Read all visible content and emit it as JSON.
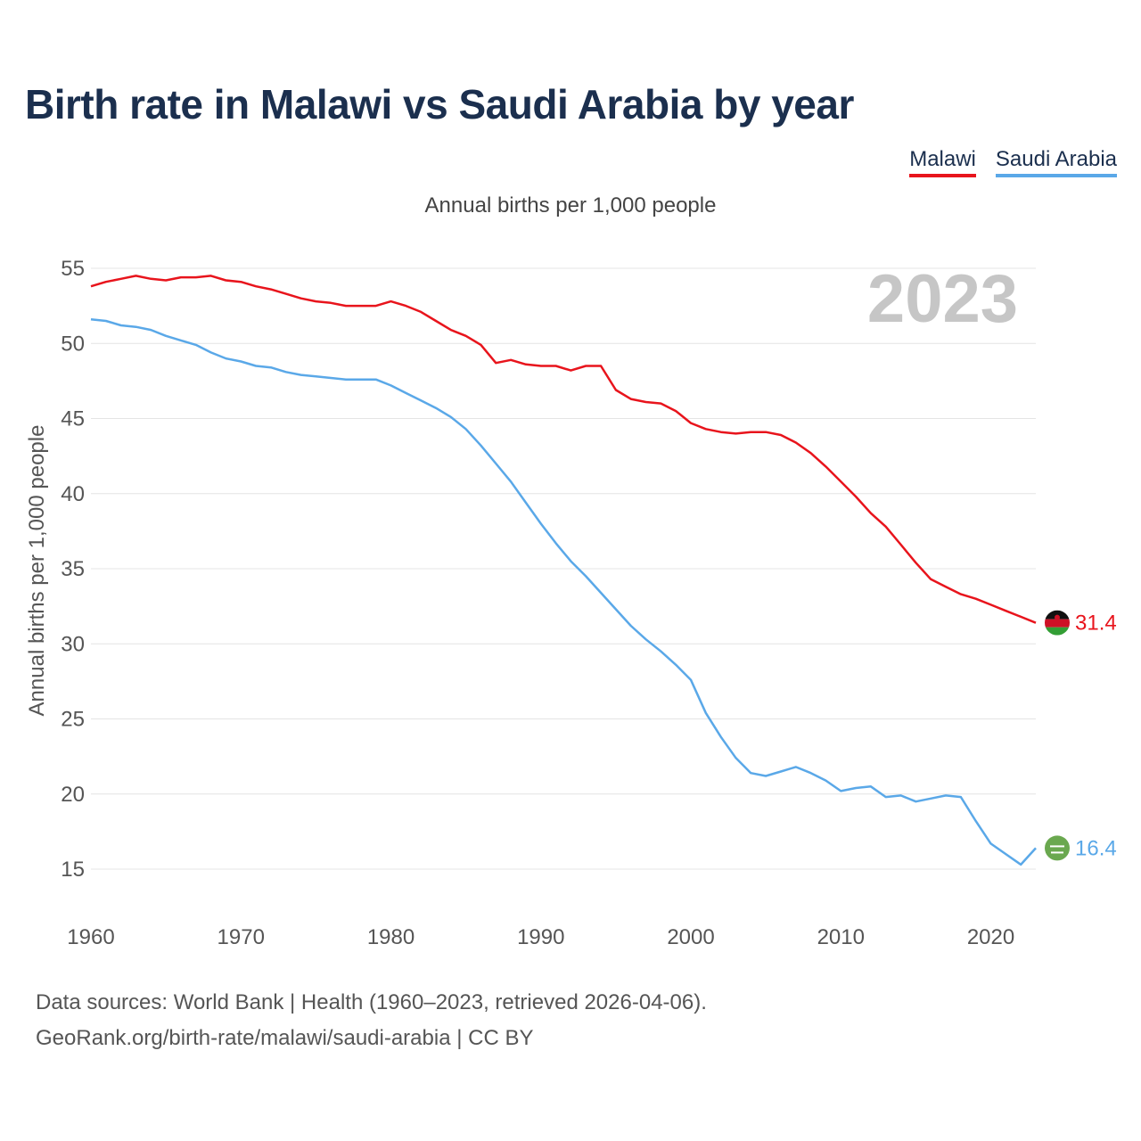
{
  "title": "Birth rate in Malawi vs Saudi Arabia by year",
  "subtitle": "Annual births per 1,000 people",
  "year_watermark": "2023",
  "footer": {
    "line1": "Data sources: World Bank | Health (1960–2023, retrieved 2026-04-06).",
    "line2": "GeoRank.org/birth-rate/malawi/saudi-arabia | CC BY"
  },
  "legend": [
    {
      "name": "Malawi",
      "color": "#e8141c"
    },
    {
      "name": "Saudi Arabia",
      "color": "#5aa8e8"
    }
  ],
  "chart_data": {
    "type": "line",
    "title": "Birth rate in Malawi vs Saudi Arabia by year",
    "xlabel": "",
    "ylabel": "Annual births per 1,000 people",
    "xlim": [
      1960,
      2023
    ],
    "ylim": [
      15,
      55
    ],
    "xticks": [
      1960,
      1970,
      1980,
      1990,
      2000,
      2010,
      2020
    ],
    "yticks": [
      15,
      20,
      25,
      30,
      35,
      40,
      45,
      50,
      55
    ],
    "grid": true,
    "legend_position": "top-right",
    "x": [
      1960,
      1961,
      1962,
      1963,
      1964,
      1965,
      1966,
      1967,
      1968,
      1969,
      1970,
      1971,
      1972,
      1973,
      1974,
      1975,
      1976,
      1977,
      1978,
      1979,
      1980,
      1981,
      1982,
      1983,
      1984,
      1985,
      1986,
      1987,
      1988,
      1989,
      1990,
      1991,
      1992,
      1993,
      1994,
      1995,
      1996,
      1997,
      1998,
      1999,
      2000,
      2001,
      2002,
      2003,
      2004,
      2005,
      2006,
      2007,
      2008,
      2009,
      2010,
      2011,
      2012,
      2013,
      2014,
      2015,
      2016,
      2017,
      2018,
      2019,
      2020,
      2021,
      2022,
      2023
    ],
    "series": [
      {
        "name": "Malawi",
        "color": "#e8141c",
        "end_label": "31.4",
        "values": [
          53.8,
          54.1,
          54.3,
          54.5,
          54.3,
          54.2,
          54.4,
          54.4,
          54.5,
          54.2,
          54.1,
          53.8,
          53.6,
          53.3,
          53.0,
          52.8,
          52.7,
          52.5,
          52.5,
          52.5,
          52.8,
          52.5,
          52.1,
          51.5,
          50.9,
          50.5,
          49.9,
          48.7,
          48.9,
          48.6,
          48.5,
          48.5,
          48.2,
          48.5,
          48.5,
          46.9,
          46.3,
          46.1,
          46.0,
          45.5,
          44.7,
          44.3,
          44.1,
          44.0,
          44.1,
          44.1,
          43.9,
          43.4,
          42.7,
          41.8,
          40.8,
          39.8,
          38.7,
          37.8,
          36.6,
          35.4,
          34.3,
          33.8,
          33.3,
          33.0,
          32.6,
          32.2,
          31.8,
          31.4
        ]
      },
      {
        "name": "Saudi Arabia",
        "color": "#5aa8e8",
        "end_label": "16.4",
        "values": [
          51.6,
          51.5,
          51.2,
          51.1,
          50.9,
          50.5,
          50.2,
          49.9,
          49.4,
          49.0,
          48.8,
          48.5,
          48.4,
          48.1,
          47.9,
          47.8,
          47.7,
          47.6,
          47.6,
          47.6,
          47.2,
          46.7,
          46.2,
          45.7,
          45.1,
          44.3,
          43.2,
          42.0,
          40.8,
          39.4,
          38.0,
          36.7,
          35.5,
          34.5,
          33.4,
          32.3,
          31.2,
          30.3,
          29.5,
          28.6,
          27.6,
          25.4,
          23.8,
          22.4,
          21.4,
          21.2,
          21.5,
          21.8,
          21.4,
          20.9,
          20.2,
          20.4,
          20.5,
          19.8,
          19.9,
          19.5,
          19.7,
          19.9,
          19.8,
          18.2,
          16.7,
          16.0,
          15.3,
          16.4
        ]
      }
    ]
  }
}
